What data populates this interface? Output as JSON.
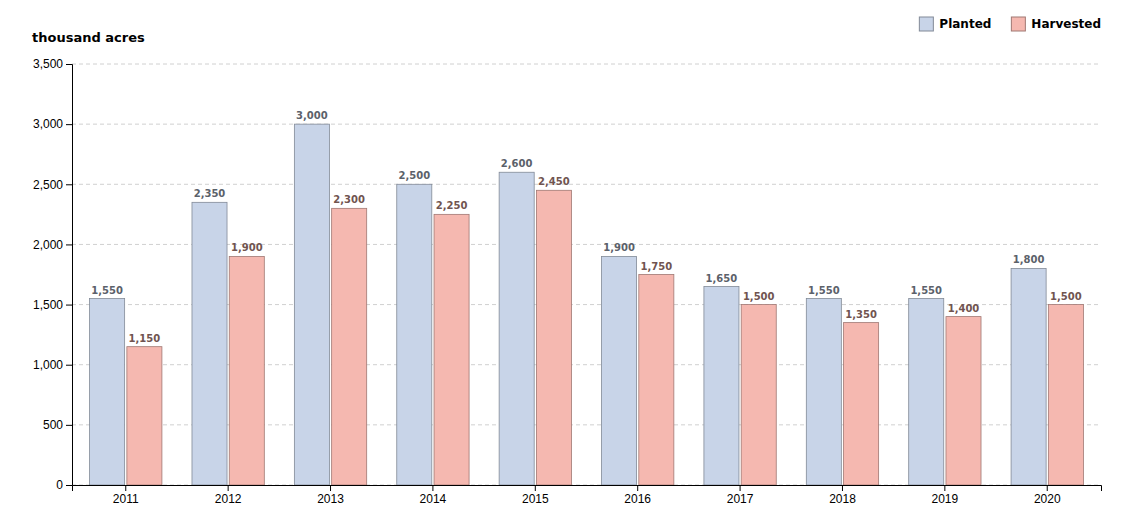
{
  "chart_data": {
    "type": "bar",
    "ylabel": "thousand acres",
    "categories": [
      "2011",
      "2012",
      "2013",
      "2014",
      "2015",
      "2016",
      "2017",
      "2018",
      "2019",
      "2020"
    ],
    "series": [
      {
        "name": "Planted",
        "color": "#c8d4e8",
        "values": [
          1550,
          2350,
          3000,
          2500,
          2600,
          1900,
          1650,
          1550,
          1550,
          1800
        ],
        "value_labels": [
          "1,550",
          "2,350",
          "3,000",
          "2,500",
          "2,600",
          "1,900",
          "1,650",
          "1,550",
          "1,550",
          "1,800"
        ]
      },
      {
        "name": "Harvested",
        "color": "#f5b8b0",
        "values": [
          1150,
          1900,
          2300,
          2250,
          2450,
          1750,
          1500,
          1350,
          1400,
          1500
        ],
        "value_labels": [
          "1,150",
          "1,900",
          "2,300",
          "2,250",
          "2,450",
          "1,750",
          "1,500",
          "1,350",
          "1,400",
          "1,500"
        ]
      }
    ],
    "ylim": [
      0,
      3500
    ],
    "yticks": [
      0,
      500,
      {
        "value": 1000,
        "label": "1,000"
      },
      {
        "value": 1500,
        "label": "1,500"
      },
      {
        "value": 2000,
        "label": "2,000"
      },
      {
        "value": 2500,
        "label": "2,500"
      },
      {
        "value": 3000,
        "label": "3,000"
      },
      {
        "value": 3500,
        "label": "3,500"
      }
    ],
    "grid": true,
    "legend": "upper right",
    "data_labels": true
  }
}
